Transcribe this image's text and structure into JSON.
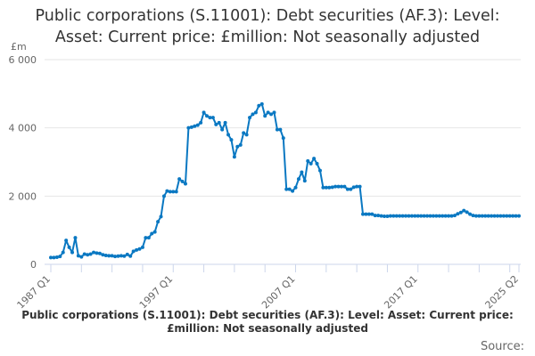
{
  "title": "Public corporations (S.11001): Debt securities (AF.3): Level: Asset: Current price: £million: Not seasonally adjusted",
  "source_label": "Source:",
  "chart_data": {
    "type": "line",
    "title": "Public corporations (S.11001): Debt securities (AF.3): Level: Asset: Current price: £million: Not seasonally adjusted",
    "ylabel": "£m",
    "xlabel": "",
    "ylim": [
      0,
      6000
    ],
    "y_ticks": [
      0,
      2000,
      4000,
      6000
    ],
    "y_tick_labels": [
      "0",
      "2 000",
      "4 000",
      "6 000"
    ],
    "x_tick_labels": [
      "1987 Q1",
      "1997 Q1",
      "2007 Q1",
      "2017 Q1",
      "2025 Q2"
    ],
    "frequency": "quarterly",
    "grid": true,
    "markers": true,
    "line_color": "#0a78c2",
    "series": [
      {
        "by_year": [
          {
            "year": 1987,
            "values": [
              200,
              200,
              210,
              230
            ]
          },
          {
            "year": 1988,
            "values": [
              350,
              700,
              500,
              350
            ]
          },
          {
            "year": 1989,
            "values": [
              780,
              250,
              220,
              300
            ]
          },
          {
            "year": 1990,
            "values": [
              280,
              300,
              350,
              330
            ]
          },
          {
            "year": 1991,
            "values": [
              320,
              280,
              260,
              250
            ]
          },
          {
            "year": 1992,
            "values": [
              250,
              230,
              240,
              250
            ]
          },
          {
            "year": 1993,
            "values": [
              240,
              290,
              240,
              380
            ]
          },
          {
            "year": 1994,
            "values": [
              420,
              450,
              500,
              780
            ]
          },
          {
            "year": 1995,
            "values": [
              780,
              900,
              950,
              1250
            ]
          },
          {
            "year": 1996,
            "values": [
              1400,
              2000,
              2150,
              2130
            ]
          },
          {
            "year": 1997,
            "values": [
              2130,
              2130,
              2500,
              2430
            ]
          },
          {
            "year": 1998,
            "values": [
              2360,
              4000,
              4020,
              4050
            ]
          },
          {
            "year": 1999,
            "values": [
              4080,
              4150,
              4450,
              4350
            ]
          },
          {
            "year": 2000,
            "values": [
              4300,
              4300,
              4100,
              4150
            ]
          },
          {
            "year": 2001,
            "values": [
              3950,
              4150,
              3800,
              3650
            ]
          },
          {
            "year": 2002,
            "values": [
              3150,
              3450,
              3500,
              3850
            ]
          },
          {
            "year": 2003,
            "values": [
              3800,
              4300,
              4400,
              4450
            ]
          },
          {
            "year": 2004,
            "values": [
              4650,
              4700,
              4350,
              4450
            ]
          },
          {
            "year": 2005,
            "values": [
              4400,
              4450,
              3950,
              3950
            ]
          },
          {
            "year": 2006,
            "values": [
              3700,
              2200,
              2200,
              2150
            ]
          },
          {
            "year": 2007,
            "values": [
              2250,
              2500,
              2700,
              2450
            ]
          },
          {
            "year": 2008,
            "values": [
              3030,
              2950,
              3100,
              2950
            ]
          },
          {
            "year": 2009,
            "values": [
              2750,
              2250,
              2250,
              2250
            ]
          },
          {
            "year": 2010,
            "values": [
              2260,
              2280,
              2280,
              2280
            ]
          },
          {
            "year": 2011,
            "values": [
              2280,
              2200,
              2200,
              2260
            ]
          },
          {
            "year": 2012,
            "values": [
              2280,
              2280,
              1470,
              1470
            ]
          },
          {
            "year": 2013,
            "values": [
              1470,
              1470,
              1430,
              1430
            ]
          },
          {
            "year": 2014,
            "values": [
              1420,
              1410,
              1410,
              1420
            ]
          },
          {
            "year": 2015,
            "values": [
              1420,
              1420,
              1420,
              1420
            ]
          },
          {
            "year": 2016,
            "values": [
              1420,
              1420,
              1420,
              1420
            ]
          },
          {
            "year": 2017,
            "values": [
              1420,
              1420,
              1420,
              1420
            ]
          },
          {
            "year": 2018,
            "values": [
              1420,
              1420,
              1420,
              1420
            ]
          },
          {
            "year": 2019,
            "values": [
              1420,
              1420,
              1420,
              1420
            ]
          },
          {
            "year": 2020,
            "values": [
              1430,
              1480,
              1520,
              1575
            ]
          },
          {
            "year": 2021,
            "values": [
              1530,
              1470,
              1430,
              1420
            ]
          },
          {
            "year": 2022,
            "values": [
              1420,
              1420,
              1420,
              1420
            ]
          },
          {
            "year": 2023,
            "values": [
              1420,
              1420,
              1420,
              1420
            ]
          },
          {
            "year": 2024,
            "values": [
              1420,
              1420,
              1420,
              1420
            ]
          },
          {
            "year": 2025,
            "values": [
              1420,
              1420
            ]
          }
        ]
      }
    ]
  }
}
